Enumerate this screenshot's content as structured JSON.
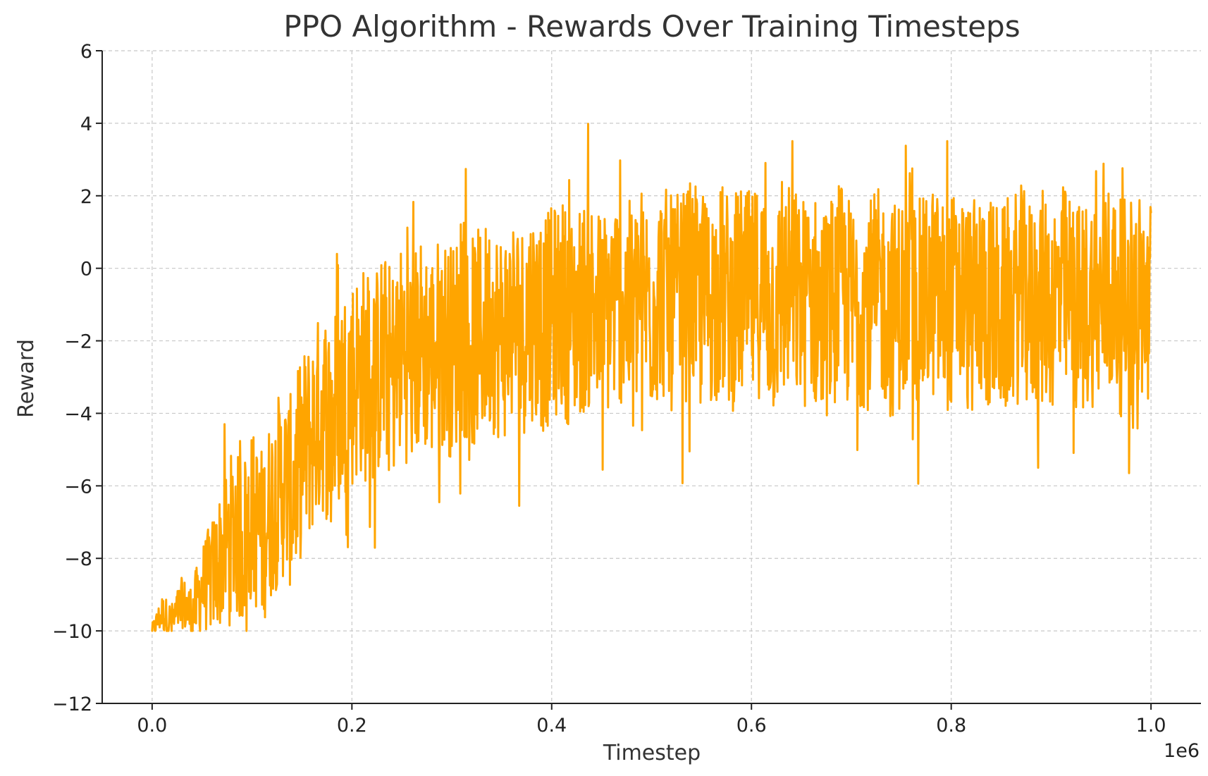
{
  "chart_data": {
    "type": "line",
    "title": "PPO Algorithm - Rewards Over Training Timesteps",
    "xlabel": "Timestep",
    "ylabel": "Reward",
    "x_offset_label": "1e6",
    "xlim": [
      -50000,
      1050000
    ],
    "ylim": [
      -12,
      6
    ],
    "x_ticks": [
      0,
      200000,
      400000,
      600000,
      800000,
      1000000
    ],
    "x_tick_labels": [
      "0.0",
      "0.2",
      "0.4",
      "0.6",
      "0.8",
      "1.0"
    ],
    "y_ticks": [
      -12,
      -10,
      -8,
      -6,
      -4,
      -2,
      0,
      2,
      4,
      6
    ],
    "y_tick_labels": [
      "−12",
      "−10",
      "−8",
      "−6",
      "−4",
      "−2",
      "0",
      "2",
      "4",
      "6"
    ],
    "grid": true,
    "line_color": "#FFA500",
    "series": [
      {
        "x": [
          0,
          10000,
          20000,
          30000,
          40000,
          50000,
          60000,
          70000,
          80000,
          90000,
          100000,
          110000,
          120000,
          130000,
          140000,
          150000,
          160000,
          170000,
          180000,
          190000,
          200000,
          210000,
          220000,
          230000,
          240000,
          250000,
          260000,
          270000,
          280000,
          290000,
          300000,
          310000,
          320000,
          330000,
          340000,
          350000,
          360000,
          370000,
          380000,
          390000,
          400000,
          410000,
          420000,
          430000,
          440000,
          450000,
          460000,
          470000,
          480000,
          490000,
          500000,
          510000,
          520000,
          530000,
          540000,
          550000,
          560000,
          570000,
          580000,
          590000,
          600000,
          610000,
          620000,
          630000,
          640000,
          650000,
          660000,
          670000,
          680000,
          690000,
          700000,
          710000,
          720000,
          730000,
          740000,
          750000,
          760000,
          770000,
          780000,
          790000,
          800000,
          810000,
          820000,
          830000,
          840000,
          850000,
          860000,
          870000,
          880000,
          890000,
          900000,
          910000,
          920000,
          930000,
          940000,
          950000,
          960000,
          970000,
          980000,
          990000,
          1000000
        ],
        "values": [
          -10,
          -9.5,
          -9.8,
          -9.2,
          -9.6,
          -8.8,
          -8.5,
          -7.9,
          -7.2,
          -7.6,
          -6.8,
          -7.4,
          -6.5,
          -5.9,
          -6.2,
          -5.1,
          -4.6,
          -3.9,
          -4.2,
          -3.5,
          -3.1,
          -2.8,
          -3.3,
          -2.5,
          -2.9,
          -2.2,
          -2.6,
          -2.0,
          -2.4,
          -1.9,
          -2.3,
          -1.6,
          -2.1,
          -1.8,
          -1.5,
          -1.9,
          -1.4,
          -1.7,
          -1.2,
          -1.6,
          -1.3,
          -1.0,
          -1.5,
          -1.1,
          -0.9,
          -1.4,
          -1.0,
          -0.8,
          -1.2,
          -0.7,
          -1.1,
          -0.6,
          -1.0,
          -0.9,
          -0.5,
          -1.1,
          -0.8,
          -0.6,
          -1.0,
          -0.7,
          -0.9,
          -0.5,
          -1.2,
          -0.8,
          -0.6,
          -1.0,
          -0.7,
          -1.3,
          -0.9,
          -0.6,
          -1.1,
          -0.8,
          -1.0,
          -0.7,
          -1.2,
          -0.9,
          -0.8,
          -1.1,
          -0.6,
          -1.0,
          -0.9,
          -0.7,
          -1.2,
          -0.8,
          -1.0,
          -1.3,
          -0.9,
          -0.7,
          -1.1,
          -0.8,
          -1.0,
          -0.6,
          -0.9,
          -1.2,
          -0.8,
          -1.0,
          -0.7,
          -1.1,
          -0.9,
          -0.8,
          -1.0
        ],
        "amplitude": [
          0.2,
          0.5,
          0.6,
          0.7,
          0.9,
          1.2,
          1.6,
          2.0,
          2.2,
          2.4,
          2.4,
          2.5,
          2.6,
          2.7,
          2.7,
          2.8,
          2.8,
          2.9,
          3.0,
          3.0,
          3.0,
          3.0,
          3.0,
          3.0,
          3.0,
          3.0,
          3.0,
          3.0,
          3.0,
          3.0,
          3.0,
          3.0,
          3.0,
          3.0,
          3.0,
          3.0,
          3.0,
          3.0,
          3.0,
          3.0,
          3.0,
          3.0,
          3.0,
          3.0,
          3.0,
          3.0,
          3.0,
          3.0,
          3.0,
          3.0,
          3.0,
          3.0,
          3.0,
          3.0,
          3.0,
          3.0,
          3.0,
          3.0,
          3.0,
          3.0,
          3.0,
          3.0,
          3.0,
          3.0,
          3.0,
          3.0,
          3.0,
          3.0,
          3.0,
          3.0,
          3.0,
          3.0,
          3.0,
          3.0,
          3.0,
          3.0,
          3.0,
          3.0,
          3.0,
          3.0,
          3.0,
          3.0,
          3.0,
          3.0,
          3.0,
          3.0,
          3.0,
          3.0,
          3.0,
          3.0,
          3.0,
          3.0,
          3.0,
          3.0,
          3.0,
          3.0,
          3.0,
          3.0,
          3.0,
          3.0,
          3.0
        ],
        "floor": -10
      }
    ]
  }
}
